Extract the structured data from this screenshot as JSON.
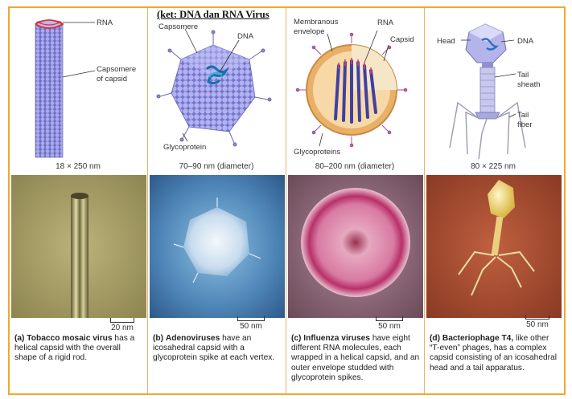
{
  "title": "(ket: DNA dan RNA Virus",
  "panels": [
    {
      "labels": [
        "RNA",
        "Capsomere",
        "of capsid"
      ],
      "size": "18 × 250 nm",
      "scale": "20 nm",
      "caption_letter": "(a)",
      "caption_bold": "Tobacco mosaic virus",
      "caption_rest": "has a helical capsid with the overall shape of a rigid rod."
    },
    {
      "labels": [
        "Capsomere",
        "DNA",
        "Glycoprotein"
      ],
      "size": "70–90 nm (diameter)",
      "scale": "50 nm",
      "caption_letter": "(b)",
      "caption_bold": "Adenoviruses",
      "caption_rest": "have an icosahedral capsid with a glycoprotein spike at each vertex."
    },
    {
      "labels": [
        "Membranous",
        "envelope",
        "RNA",
        "Capsid",
        "Glycoproteins"
      ],
      "size": "80–200 nm (diameter)",
      "scale": "50 nm",
      "caption_letter": "(c)",
      "caption_bold": "Influenza viruses",
      "caption_rest": "have eight different RNA molecules, each wrapped in a helical capsid, and an outer envelope studded with glycoprotein spikes."
    },
    {
      "labels": [
        "Head",
        "DNA",
        "Tail",
        "sheath",
        "Tail",
        "fiber"
      ],
      "size": "80 × 225 nm",
      "scale": "50 nm",
      "caption_letter": "(d)",
      "caption_bold": "Bacteriophage T4,",
      "caption_rest": "like other “T-even” phages, has a complex capsid consisting of an icosahedral head and a tail apparatus."
    }
  ],
  "colors": {
    "frame": "#f0a830",
    "capsid": "#8f8fe0",
    "rna": "#2fa0c8",
    "envelope": "#e3a35a",
    "spike": "#a25090"
  }
}
